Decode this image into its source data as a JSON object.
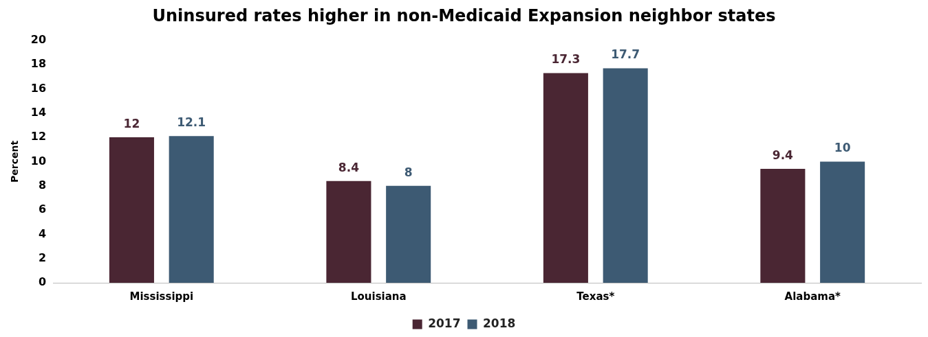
{
  "chart_data": {
    "type": "bar",
    "title": "Uninsured rates higher in non-Medicaid Expansion neighbor states",
    "ylabel": "Percent",
    "categories": [
      "Mississippi",
      "Louisiana",
      "Texas*",
      "Alabama*"
    ],
    "series": [
      {
        "name": "2017",
        "color": "#4a2633",
        "values": [
          12,
          8.4,
          17.3,
          9.4
        ]
      },
      {
        "name": "2018",
        "color": "#3d5a73",
        "values": [
          12.1,
          8,
          17.7,
          10
        ]
      }
    ],
    "ylim": [
      0,
      20
    ],
    "yticks": [
      0,
      2,
      4,
      6,
      8,
      10,
      12,
      14,
      16,
      18,
      20
    ],
    "grid": false,
    "legend": "bottom",
    "data_labels": true
  }
}
